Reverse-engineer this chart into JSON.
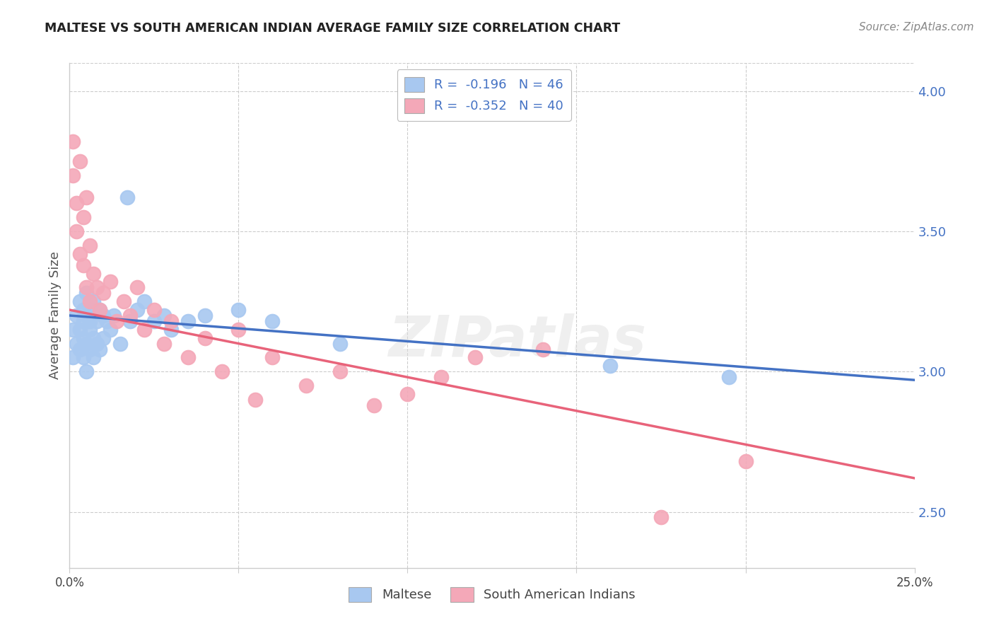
{
  "title": "MALTESE VS SOUTH AMERICAN INDIAN AVERAGE FAMILY SIZE CORRELATION CHART",
  "source": "Source: ZipAtlas.com",
  "ylabel": "Average Family Size",
  "right_yticks": [
    2.5,
    3.0,
    3.5,
    4.0
  ],
  "watermark": "ZIPatlas",
  "legend_blue_r_val": "-0.196",
  "legend_blue_n_val": "46",
  "legend_pink_r_val": "-0.352",
  "legend_pink_n_val": "40",
  "blue_scatter_color": "#A8C8F0",
  "pink_scatter_color": "#F4A8B8",
  "blue_line_color": "#4472C4",
  "pink_line_color": "#E8637A",
  "blue_intercept": 3.2,
  "blue_slope": -0.92,
  "pink_intercept": 3.22,
  "pink_slope": -2.4,
  "maltese_x": [
    0.001,
    0.001,
    0.002,
    0.002,
    0.003,
    0.003,
    0.003,
    0.004,
    0.004,
    0.004,
    0.004,
    0.005,
    0.005,
    0.005,
    0.005,
    0.006,
    0.006,
    0.006,
    0.006,
    0.007,
    0.007,
    0.007,
    0.008,
    0.008,
    0.009,
    0.009,
    0.01,
    0.01,
    0.011,
    0.012,
    0.013,
    0.015,
    0.017,
    0.018,
    0.02,
    0.022,
    0.025,
    0.028,
    0.03,
    0.035,
    0.04,
    0.05,
    0.06,
    0.08,
    0.16,
    0.195
  ],
  "maltese_y": [
    3.15,
    3.05,
    3.2,
    3.1,
    3.25,
    3.15,
    3.08,
    3.22,
    3.12,
    3.18,
    3.05,
    3.28,
    3.1,
    3.2,
    3.0,
    3.22,
    3.15,
    3.08,
    3.18,
    3.25,
    3.12,
    3.05,
    3.18,
    3.1,
    3.22,
    3.08,
    3.2,
    3.12,
    3.18,
    3.15,
    3.2,
    3.1,
    3.62,
    3.18,
    3.22,
    3.25,
    3.18,
    3.2,
    3.15,
    3.18,
    3.2,
    3.22,
    3.18,
    3.1,
    3.02,
    2.98
  ],
  "sa_indian_x": [
    0.001,
    0.001,
    0.002,
    0.002,
    0.003,
    0.003,
    0.004,
    0.004,
    0.005,
    0.005,
    0.006,
    0.006,
    0.007,
    0.008,
    0.009,
    0.01,
    0.012,
    0.014,
    0.016,
    0.018,
    0.02,
    0.022,
    0.025,
    0.028,
    0.03,
    0.035,
    0.04,
    0.045,
    0.05,
    0.055,
    0.06,
    0.07,
    0.08,
    0.09,
    0.1,
    0.11,
    0.12,
    0.14,
    0.175,
    0.2
  ],
  "sa_indian_y": [
    3.82,
    3.7,
    3.6,
    3.5,
    3.75,
    3.42,
    3.55,
    3.38,
    3.62,
    3.3,
    3.45,
    3.25,
    3.35,
    3.3,
    3.22,
    3.28,
    3.32,
    3.18,
    3.25,
    3.2,
    3.3,
    3.15,
    3.22,
    3.1,
    3.18,
    3.05,
    3.12,
    3.0,
    3.15,
    2.9,
    3.05,
    2.95,
    3.0,
    2.88,
    2.92,
    2.98,
    3.05,
    3.08,
    2.48,
    2.68
  ],
  "xlim": [
    0.0,
    0.25
  ],
  "ylim": [
    2.3,
    4.1
  ],
  "bg_color": "#FFFFFF",
  "grid_color": "#CCCCCC"
}
